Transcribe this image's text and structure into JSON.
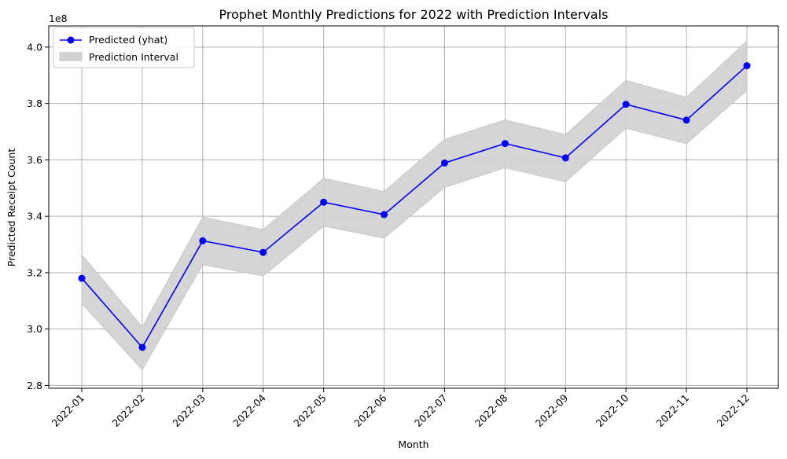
{
  "chart_data": {
    "type": "line",
    "title": "Prophet Monthly Predictions for 2022 with Prediction Intervals",
    "xlabel": "Month",
    "ylabel": "Predicted Receipt Count",
    "y_offset_label": "1e8",
    "categories": [
      "2022-01",
      "2022-02",
      "2022-03",
      "2022-04",
      "2022-05",
      "2022-06",
      "2022-07",
      "2022-08",
      "2022-09",
      "2022-10",
      "2022-11",
      "2022-12"
    ],
    "series": [
      {
        "name": "Predicted (yhat)",
        "color": "#0000ff",
        "values": [
          3.18,
          2.935,
          3.313,
          3.272,
          3.45,
          3.406,
          3.589,
          3.658,
          3.607,
          3.797,
          3.741,
          3.934
        ]
      }
    ],
    "interval": {
      "name": "Prediction Interval",
      "color": "#d3d3d3",
      "lower": [
        3.09,
        2.855,
        3.228,
        3.188,
        3.365,
        3.322,
        3.502,
        3.572,
        3.522,
        3.712,
        3.657,
        3.846
      ],
      "upper": [
        3.265,
        3.008,
        3.397,
        3.353,
        3.535,
        3.488,
        3.673,
        3.742,
        3.69,
        3.882,
        3.822,
        4.022
      ]
    },
    "y_ticks": [
      "2.8",
      "3.0",
      "3.2",
      "3.4",
      "3.6",
      "3.8",
      "4.0"
    ],
    "ylim": [
      2.79,
      4.075
    ],
    "grid": true,
    "legend_position": "upper-left"
  }
}
